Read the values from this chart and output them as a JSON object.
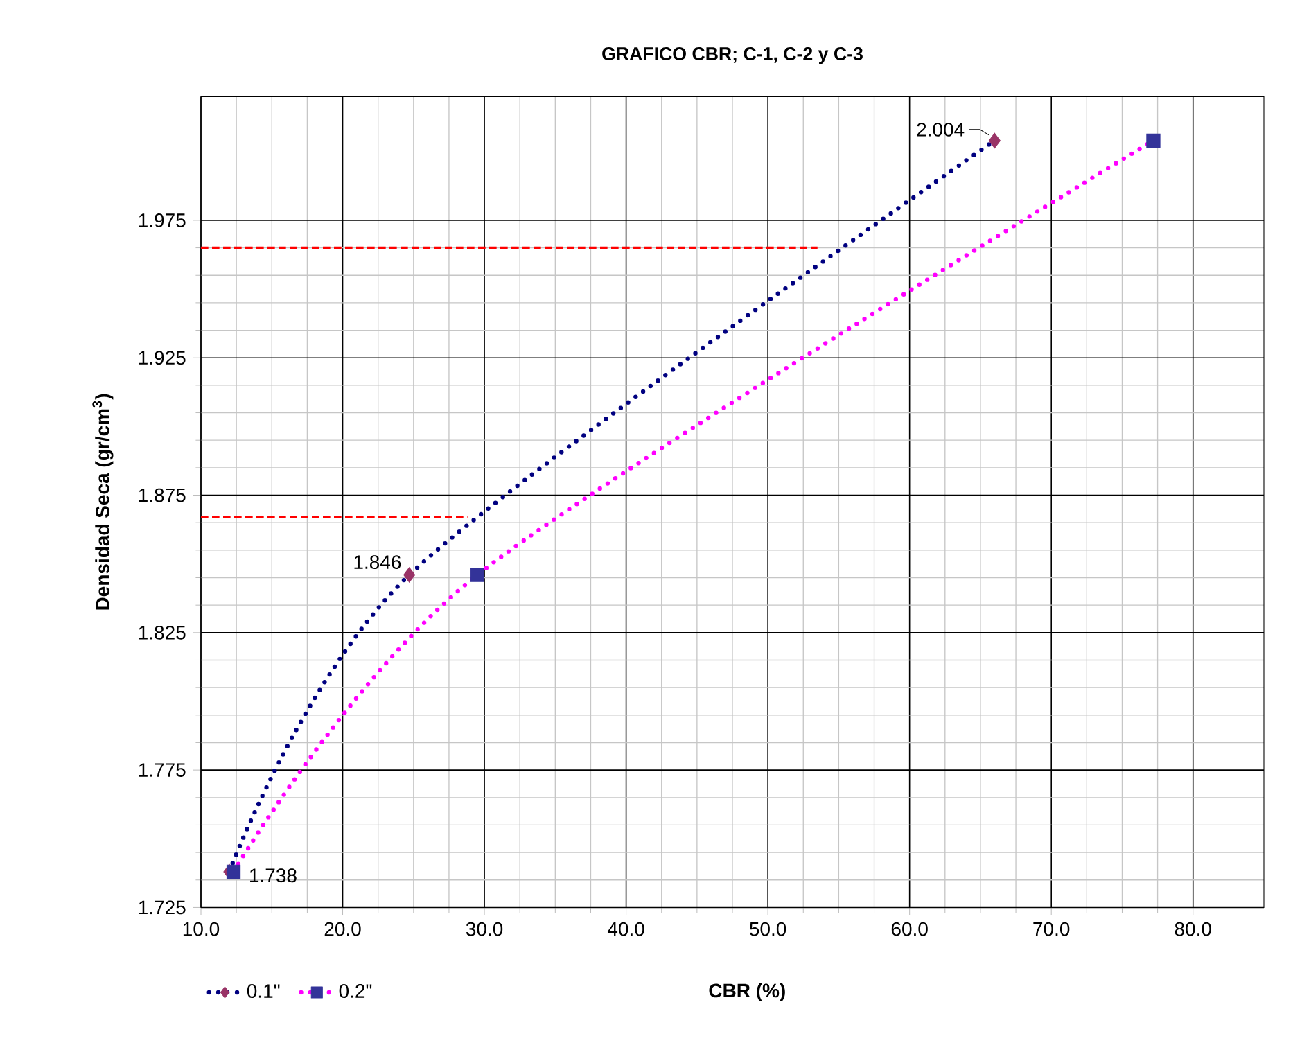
{
  "chart_data": {
    "type": "line",
    "title": "GRAFICO CBR; C-1, C-2 y C-3",
    "xlabel": "CBR  (%)",
    "ylabel": "Densidad Seca (gr/cm$^{3}$)",
    "series": [
      {
        "name": "0.1\"",
        "color": "#000080",
        "colors": [
          "#993366",
          "#993366",
          "#993366"
        ],
        "marker": "diamond",
        "line_style": "dotted",
        "x": [
          12.0,
          24.7,
          66.0
        ],
        "values": [
          1.738,
          1.846,
          2.004
        ]
      },
      {
        "name": "0.2\"",
        "color": "#ff00ff",
        "colors": [
          "#333399",
          "#333399",
          "#333399"
        ],
        "marker": "square",
        "line_style": "dotted",
        "x": [
          12.3,
          29.5,
          77.2
        ],
        "values": [
          1.738,
          1.846,
          2.004
        ]
      },
      {
        "color": "#ff0000",
        "marker": "none",
        "line_style": "dashed",
        "x": [
          10,
          53.5
        ],
        "values": [
          1.965,
          1.965
        ]
      },
      {
        "color": "#ff0000",
        "marker": "none",
        "line_style": "dashed",
        "x": [
          10,
          28.8
        ],
        "values": [
          1.867,
          1.867
        ]
      }
    ],
    "annotations": [
      {
        "text": "2.004",
        "x": 66.0,
        "y": 2.004
      },
      {
        "text": "1.846",
        "x": 24.7,
        "y": 1.846
      },
      {
        "text": "1.738",
        "x": 12.3,
        "y": 1.738
      }
    ],
    "xlim": [
      10,
      85
    ],
    "ylim": [
      1.725,
      2.02
    ],
    "xticks": [
      {
        "value": 10,
        "label": "10.0"
      },
      {
        "value": 20,
        "label": "20.0"
      },
      {
        "value": 30,
        "label": "30.0"
      },
      {
        "value": 40,
        "label": "40.0"
      },
      {
        "value": 50,
        "label": "50.0"
      },
      {
        "value": 60,
        "label": "60.0"
      },
      {
        "value": 70,
        "label": "70.0"
      },
      {
        "value": 80,
        "label": "80.0"
      }
    ],
    "yticks": [
      1.725,
      1.775,
      1.825,
      1.875,
      1.925,
      1.975
    ],
    "grid": true,
    "legend": "bottom left"
  }
}
